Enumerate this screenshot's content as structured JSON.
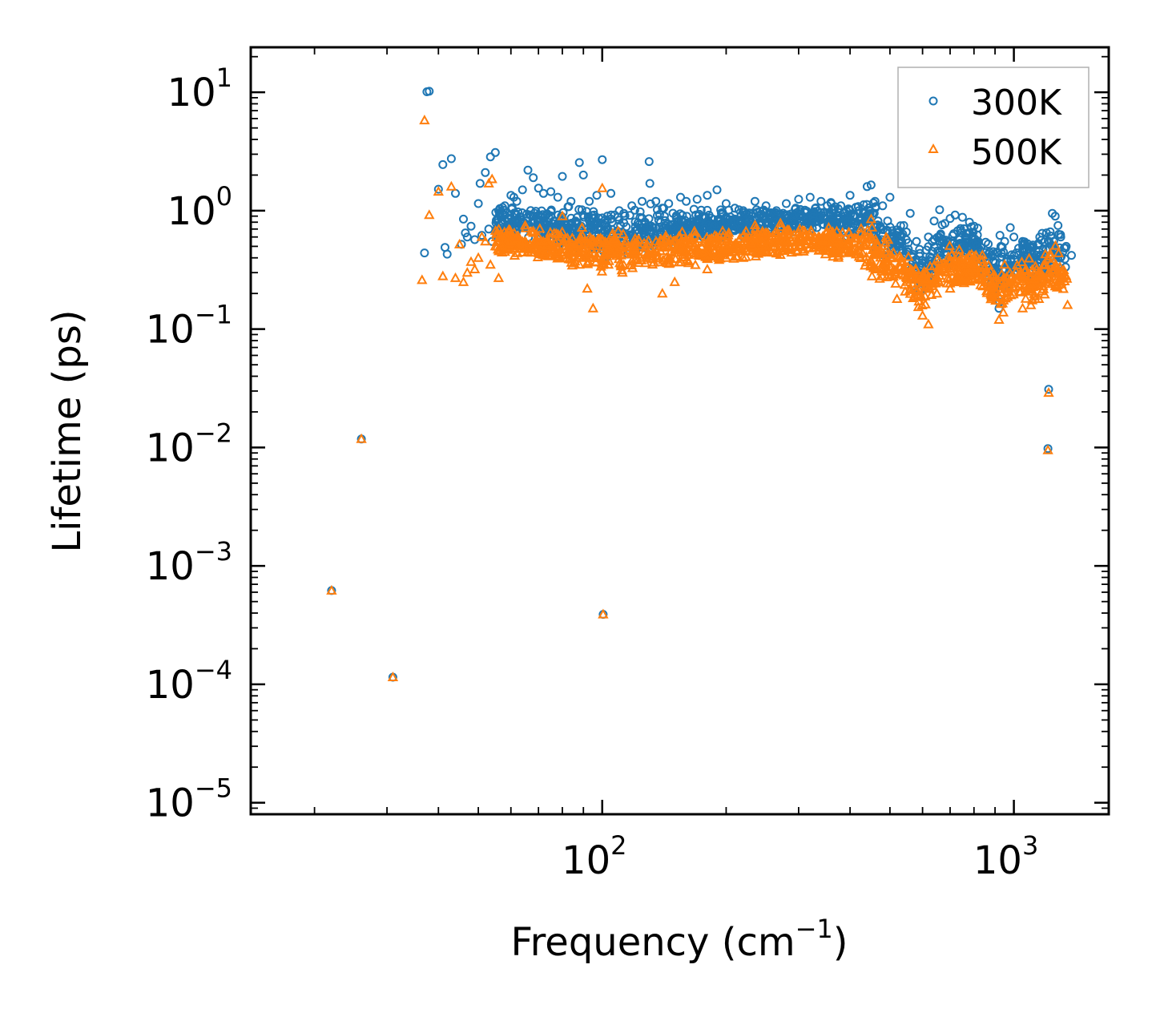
{
  "chart_data": {
    "type": "scatter",
    "title": "",
    "xlabel": "Frequency (cm",
    "xlabel_sup": "−1",
    "xlabel_end": ")",
    "ylabel": "Lifetime (ps)",
    "xscale": "log",
    "yscale": "log",
    "xlim": [
      14,
      1700
    ],
    "ylim": [
      8e-06,
      24
    ],
    "x_ticks": [
      {
        "value": 100,
        "base": "10",
        "exp": "2"
      },
      {
        "value": 1000,
        "base": "10",
        "exp": "3"
      }
    ],
    "y_ticks": [
      {
        "value": 10,
        "base": "10",
        "exp": "1"
      },
      {
        "value": 1,
        "base": "10",
        "exp": "0"
      },
      {
        "value": 0.1,
        "base": "10",
        "exp": "−1"
      },
      {
        "value": 0.01,
        "base": "10",
        "exp": "−2"
      },
      {
        "value": 0.001,
        "base": "10",
        "exp": "−3"
      },
      {
        "value": 0.0001,
        "base": "10",
        "exp": "−4"
      },
      {
        "value": 1e-05,
        "base": "10",
        "exp": "−5"
      }
    ],
    "legend_position": "top-right",
    "series": [
      {
        "name": "300K",
        "marker": "circle",
        "color": "#1f77b4",
        "x": [
          22.0,
          26.0,
          31.0,
          37.0,
          37.5,
          38.0,
          40.0,
          41.0,
          41.5,
          42.0,
          43.0,
          44.0,
          45.5,
          46.0,
          46.5,
          47.0,
          48.0,
          49.0,
          50.0,
          50.5,
          51.0,
          52.0,
          53.0,
          53.5,
          54.0,
          55.0,
          56.0,
          58.0,
          60.0,
          61.0,
          62.0,
          64.0,
          66.0,
          68.0,
          70.0,
          72.0,
          75.0,
          78.0,
          80.0,
          84.0,
          88.0,
          90.0,
          93.0,
          97.0,
          100.0,
          100.5,
          105.0,
          110.0,
          118.0,
          125.0,
          130.0,
          130.5,
          135.0,
          140.0,
          145.0,
          155.0,
          160.0,
          170.0,
          180.0,
          190.0,
          200.0,
          210.0,
          220.0,
          235.0,
          250.0,
          265.0,
          280.0,
          300.0,
          320.0,
          340.0,
          360.0,
          380.0,
          400.0,
          420.0,
          440.0,
          450.0,
          460.0,
          480.0,
          500.0,
          520.0,
          540.0,
          560.0,
          580.0,
          600.0,
          620.0,
          640.0,
          660.0,
          680.0,
          700.0,
          720.0,
          750.0,
          780.0,
          800.0,
          920.0,
          925.0,
          930.0,
          950.0,
          980.0,
          1000.0,
          1050.0,
          1100.0,
          1150.0,
          1200.0,
          1210.0,
          1215.0,
          1240.0,
          1260.0,
          1280.0,
          1300.0,
          1340.0,
          1380.0
        ],
        "y": [
          0.00062,
          0.0118,
          0.000115,
          0.44,
          10.1,
          10.2,
          1.52,
          2.45,
          0.49,
          0.43,
          2.75,
          1.4,
          0.52,
          0.85,
          0.65,
          0.6,
          0.74,
          0.57,
          1.15,
          1.7,
          0.62,
          2.1,
          0.7,
          2.85,
          0.55,
          3.1,
          1.0,
          1.1,
          1.35,
          1.3,
          1.2,
          1.5,
          2.2,
          1.9,
          1.55,
          1.4,
          1.45,
          1.3,
          1.95,
          1.2,
          2.55,
          2.0,
          1.2,
          1.35,
          2.7,
          0.00039,
          1.4,
          1.0,
          1.1,
          1.2,
          2.6,
          1.7,
          1.2,
          1.05,
          1.15,
          1.3,
          1.2,
          1.25,
          1.35,
          1.5,
          1.15,
          1.05,
          1.0,
          1.2,
          1.1,
          1.0,
          1.15,
          1.25,
          1.3,
          1.2,
          1.15,
          1.1,
          1.35,
          1.0,
          1.6,
          1.65,
          1.2,
          1.1,
          1.3,
          0.62,
          0.75,
          0.95,
          0.55,
          0.38,
          0.6,
          0.82,
          1.02,
          0.78,
          0.86,
          0.92,
          0.88,
          0.8,
          0.74,
          0.15,
          0.62,
          0.5,
          0.55,
          0.72,
          0.6,
          0.55,
          0.5,
          0.45,
          0.65,
          0.0098,
          0.031,
          0.95,
          0.9,
          0.75,
          0.6,
          0.5,
          0.42
        ],
        "dense_band": {
          "x_min": 55,
          "x_max": 1350,
          "center": [
            [
              55,
              0.9
            ],
            [
              80,
              1.0
            ],
            [
              110,
              0.82
            ],
            [
              150,
              0.9
            ],
            [
              220,
              0.92
            ],
            [
              300,
              1.05
            ],
            [
              400,
              1.05
            ],
            [
              450,
              0.95
            ],
            [
              500,
              0.6
            ],
            [
              560,
              0.5
            ],
            [
              600,
              0.42
            ],
            [
              650,
              0.55
            ],
            [
              720,
              0.7
            ],
            [
              800,
              0.7
            ],
            [
              920,
              0.45
            ],
            [
              1000,
              0.55
            ],
            [
              1100,
              0.45
            ],
            [
              1200,
              0.55
            ],
            [
              1300,
              0.5
            ]
          ],
          "lower": [
            [
              55,
              0.55
            ],
            [
              100,
              0.35
            ],
            [
              150,
              0.45
            ],
            [
              220,
              0.55
            ],
            [
              300,
              0.6
            ],
            [
              400,
              0.55
            ],
            [
              480,
              0.35
            ],
            [
              550,
              0.32
            ],
            [
              600,
              0.14
            ],
            [
              650,
              0.25
            ],
            [
              800,
              0.35
            ],
            [
              920,
              0.13
            ],
            [
              1050,
              0.22
            ],
            [
              1200,
              0.2
            ],
            [
              1350,
              0.25
            ]
          ],
          "upper": [
            [
              55,
              1.35
            ],
            [
              100,
              1.35
            ],
            [
              150,
              1.25
            ],
            [
              220,
              1.2
            ],
            [
              300,
              1.3
            ],
            [
              400,
              1.35
            ],
            [
              460,
              1.6
            ],
            [
              520,
              0.95
            ],
            [
              600,
              0.75
            ],
            [
              680,
              0.95
            ],
            [
              800,
              0.95
            ],
            [
              920,
              0.7
            ],
            [
              1050,
              0.75
            ],
            [
              1250,
              0.98
            ],
            [
              1350,
              0.7
            ]
          ],
          "count": 1300
        }
      },
      {
        "name": "500K",
        "marker": "triangle",
        "color": "#ff7f0e",
        "x": [
          22.0,
          26.0,
          31.0,
          36.5,
          37.0,
          38.0,
          40.0,
          41.0,
          43.0,
          44.0,
          45.0,
          46.0,
          47.0,
          48.0,
          49.0,
          50.0,
          51.0,
          52.0,
          53.0,
          53.5,
          54.0,
          55.0,
          56.0,
          58.0,
          60.0,
          62.0,
          65.0,
          68.0,
          70.0,
          72.0,
          76.0,
          80.0,
          84.0,
          88.0,
          92.0,
          95.0,
          100.0,
          100.5,
          105.0,
          112.0,
          120.0,
          128.0,
          140.0,
          150.0,
          160.0,
          180.0,
          200.0,
          220.0,
          240.0,
          260.0,
          280.0,
          300.0,
          320.0,
          350.0,
          380.0,
          420.0,
          450.0,
          480.0,
          520.0,
          560.0,
          600.0,
          620.0,
          650.0,
          700.0,
          780.0,
          920.0,
          950.0,
          1000.0,
          1050.0,
          1100.0,
          1150.0,
          1200.0,
          1210.0,
          1215.0,
          1260.0,
          1300.0,
          1350.0
        ],
        "y": [
          0.00062,
          0.0118,
          0.000115,
          0.26,
          5.8,
          0.92,
          1.45,
          0.28,
          1.6,
          0.27,
          0.52,
          0.25,
          0.3,
          0.37,
          0.32,
          0.4,
          0.6,
          0.55,
          1.7,
          0.35,
          1.85,
          0.5,
          0.27,
          0.45,
          0.55,
          0.6,
          0.75,
          0.65,
          0.6,
          0.55,
          0.5,
          0.9,
          0.45,
          0.35,
          0.22,
          0.15,
          1.55,
          0.00039,
          0.45,
          0.3,
          0.5,
          0.4,
          0.2,
          0.25,
          0.45,
          0.32,
          0.55,
          0.4,
          0.45,
          0.5,
          0.55,
          0.65,
          0.6,
          0.55,
          0.6,
          0.5,
          0.85,
          0.28,
          0.18,
          0.28,
          0.13,
          0.11,
          0.2,
          0.22,
          0.3,
          0.12,
          0.35,
          0.25,
          0.15,
          0.22,
          0.18,
          0.25,
          0.0095,
          0.029,
          0.25,
          0.3,
          0.16
        ],
        "dense_band": {
          "x_min": 55,
          "x_max": 1350,
          "center": [
            [
              55,
              0.6
            ],
            [
              80,
              0.68
            ],
            [
              110,
              0.5
            ],
            [
              150,
              0.55
            ],
            [
              220,
              0.58
            ],
            [
              300,
              0.65
            ],
            [
              400,
              0.62
            ],
            [
              450,
              0.55
            ],
            [
              500,
              0.4
            ],
            [
              560,
              0.35
            ],
            [
              600,
              0.25
            ],
            [
              650,
              0.35
            ],
            [
              720,
              0.45
            ],
            [
              800,
              0.45
            ],
            [
              920,
              0.3
            ],
            [
              1000,
              0.35
            ],
            [
              1100,
              0.3
            ],
            [
              1200,
              0.35
            ],
            [
              1300,
              0.32
            ]
          ],
          "lower": [
            [
              55,
              0.4
            ],
            [
              100,
              0.28
            ],
            [
              150,
              0.3
            ],
            [
              220,
              0.35
            ],
            [
              300,
              0.4
            ],
            [
              400,
              0.35
            ],
            [
              480,
              0.22
            ],
            [
              550,
              0.18
            ],
            [
              600,
              0.11
            ],
            [
              650,
              0.2
            ],
            [
              800,
              0.2
            ],
            [
              920,
              0.11
            ],
            [
              1050,
              0.15
            ],
            [
              1200,
              0.15
            ],
            [
              1350,
              0.17
            ]
          ],
          "upper": [
            [
              55,
              0.85
            ],
            [
              100,
              0.8
            ],
            [
              150,
              0.8
            ],
            [
              220,
              0.8
            ],
            [
              300,
              0.85
            ],
            [
              400,
              0.85
            ],
            [
              460,
              1.0
            ],
            [
              520,
              0.6
            ],
            [
              600,
              0.45
            ],
            [
              680,
              0.55
            ],
            [
              800,
              0.55
            ],
            [
              920,
              0.45
            ],
            [
              1050,
              0.5
            ],
            [
              1250,
              0.65
            ],
            [
              1350,
              0.45
            ]
          ],
          "count": 1300
        }
      }
    ]
  }
}
